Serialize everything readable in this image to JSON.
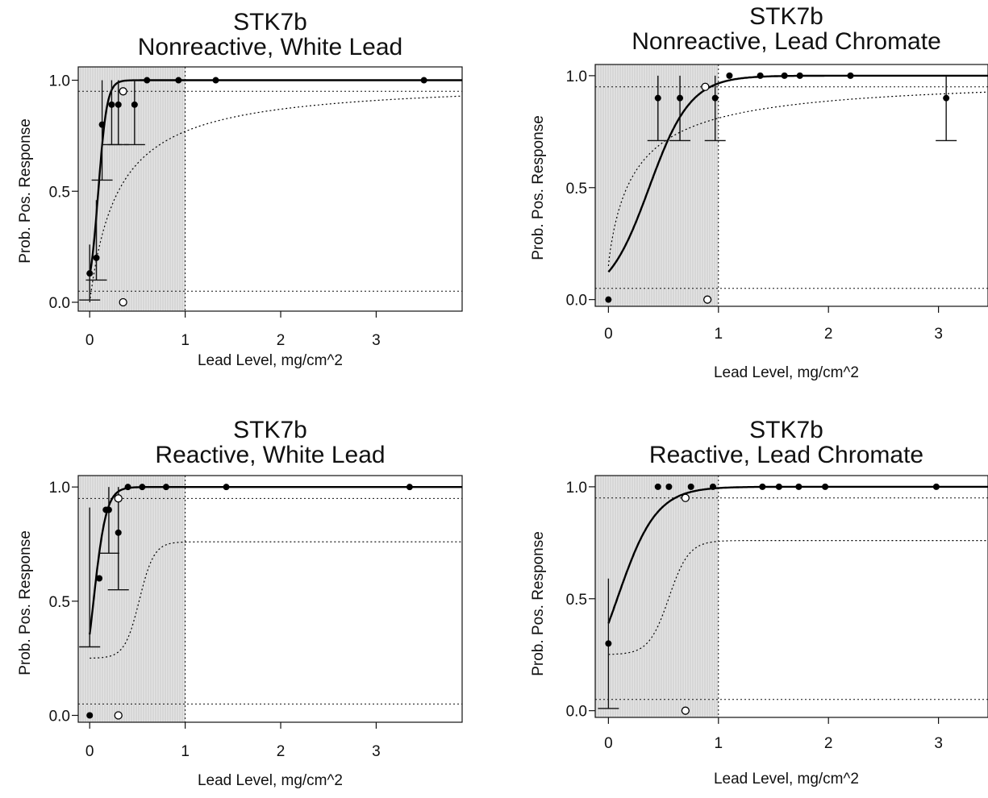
{
  "shading_color": "#c9c9c9",
  "curve_color": "#000000",
  "chart_data": [
    {
      "type": "scatter",
      "title": [
        "STK7b",
        "Nonreactive, White Lead"
      ],
      "xlabel": "Lead Level, mg/cm^2",
      "ylabel": "Prob. Pos. Response",
      "xlim": [
        -0.12,
        3.9
      ],
      "ylim": [
        -0.04,
        1.06
      ],
      "xticks": [
        "0",
        "1",
        "2",
        "3"
      ],
      "yticks": [
        "0.0",
        "0.5",
        "1.0"
      ],
      "threshold_x": 1.0,
      "reference_lines_y": [
        0.05,
        0.95
      ],
      "grid": false,
      "points": [
        {
          "x": 0.0,
          "y": 0.13
        },
        {
          "x": 0.07,
          "y": 0.2
        },
        {
          "x": 0.13,
          "y": 0.8
        },
        {
          "x": 0.23,
          "y": 0.89
        },
        {
          "x": 0.3,
          "y": 0.89
        },
        {
          "x": 0.47,
          "y": 0.89
        },
        {
          "x": 0.6,
          "y": 1.0
        },
        {
          "x": 0.93,
          "y": 1.0
        },
        {
          "x": 1.32,
          "y": 1.0
        },
        {
          "x": 3.5,
          "y": 1.0
        }
      ],
      "open_points": [
        {
          "x": 0.35,
          "y": 0.95
        },
        {
          "x": 0.35,
          "y": 0.0
        }
      ],
      "error_bars": [
        {
          "x": 0.0,
          "lo": 0.01,
          "hi": 0.26
        },
        {
          "x": 0.07,
          "lo": 0.1,
          "hi": 0.46
        },
        {
          "x": 0.13,
          "lo": 0.55,
          "hi": 1.0
        },
        {
          "x": 0.23,
          "lo": 0.71,
          "hi": 1.0
        },
        {
          "x": 0.3,
          "lo": 0.71,
          "hi": 1.0
        },
        {
          "x": 0.47,
          "lo": 0.71,
          "hi": 1.0
        }
      ],
      "fit_solid": {
        "type": "logistic",
        "x0": 0.09,
        "k": 22,
        "lower": 0.0,
        "upper": 1.0
      },
      "fit_dotted": {
        "type": "saturating",
        "lower": 0.0,
        "upper": 1.0,
        "x50": 0.3,
        "power": 1.0
      },
      "shade_to": 1.0
    },
    {
      "type": "scatter",
      "title": [
        "STK7b",
        "Nonreactive, Lead Chromate"
      ],
      "xlabel": "Lead Level, mg/cm^2",
      "ylabel": "Prob. Pos. Response",
      "xlim": [
        -0.12,
        3.45
      ],
      "ylim": [
        -0.03,
        1.05
      ],
      "xticks": [
        "0",
        "1",
        "2",
        "3"
      ],
      "yticks": [
        "0.0",
        "0.5",
        "1.0"
      ],
      "threshold_x": 1.0,
      "reference_lines_y": [
        0.05,
        0.95
      ],
      "grid": false,
      "points": [
        {
          "x": 0.0,
          "y": 0.0
        },
        {
          "x": 0.45,
          "y": 0.9
        },
        {
          "x": 0.65,
          "y": 0.9
        },
        {
          "x": 0.97,
          "y": 0.9
        },
        {
          "x": 1.1,
          "y": 1.0
        },
        {
          "x": 1.38,
          "y": 1.0
        },
        {
          "x": 1.6,
          "y": 1.0
        },
        {
          "x": 1.74,
          "y": 1.0
        },
        {
          "x": 2.2,
          "y": 1.0
        },
        {
          "x": 3.07,
          "y": 0.9
        }
      ],
      "open_points": [
        {
          "x": 0.88,
          "y": 0.95
        },
        {
          "x": 0.9,
          "y": 0.0
        }
      ],
      "error_bars": [
        {
          "x": 0.45,
          "lo": 0.71,
          "hi": 1.0
        },
        {
          "x": 0.65,
          "lo": 0.71,
          "hi": 1.0
        },
        {
          "x": 0.97,
          "lo": 0.71,
          "hi": 1.0
        },
        {
          "x": 3.07,
          "lo": 0.71,
          "hi": 1.0
        }
      ],
      "fit_solid": {
        "type": "logistic",
        "x0": 0.37,
        "k": 5.3,
        "lower": 0.0,
        "upper": 1.0
      },
      "fit_dotted": {
        "type": "saturating",
        "lower": 0.15,
        "upper": 1.0,
        "x50": 0.25,
        "power": 0.9
      },
      "shade_to": 1.0
    },
    {
      "type": "scatter",
      "title": [
        "STK7b",
        "Reactive, White Lead"
      ],
      "xlabel": "Lead Level, mg/cm^2",
      "ylabel": "Prob. Pos. Response",
      "xlim": [
        -0.12,
        3.9
      ],
      "ylim": [
        -0.03,
        1.05
      ],
      "xticks": [
        "0",
        "1",
        "2",
        "3"
      ],
      "yticks": [
        "0.0",
        "0.5",
        "1.0"
      ],
      "threshold_x": 1.0,
      "reference_lines_y": [
        0.05,
        0.95
      ],
      "grid": false,
      "points": [
        {
          "x": 0.0,
          "y": 0.0
        },
        {
          "x": 0.1,
          "y": 0.6
        },
        {
          "x": 0.17,
          "y": 0.9
        },
        {
          "x": 0.2,
          "y": 0.9
        },
        {
          "x": 0.3,
          "y": 0.8
        },
        {
          "x": 0.4,
          "y": 1.0
        },
        {
          "x": 0.55,
          "y": 1.0
        },
        {
          "x": 0.8,
          "y": 1.0
        },
        {
          "x": 1.43,
          "y": 1.0
        },
        {
          "x": 3.35,
          "y": 1.0
        }
      ],
      "open_points": [
        {
          "x": 0.3,
          "y": 0.95
        },
        {
          "x": 0.3,
          "y": 0.0
        }
      ],
      "error_bars": [
        {
          "x": 0.0,
          "lo": 0.3,
          "hi": 0.91
        },
        {
          "x": 0.2,
          "lo": 0.71,
          "hi": 1.0
        },
        {
          "x": 0.3,
          "lo": 0.55,
          "hi": 1.0
        }
      ],
      "fit_solid": {
        "type": "logistic",
        "x0": 0.04,
        "k": 15,
        "lower": 0.0,
        "upper": 1.0
      },
      "fit_dotted": {
        "type": "logistic",
        "x0": 0.52,
        "k": 13,
        "lower": 0.25,
        "upper": 0.76
      },
      "shade_to": 1.0
    },
    {
      "type": "scatter",
      "title": [
        "STK7b",
        "Reactive, Lead Chromate"
      ],
      "xlabel": "Lead Level, mg/cm^2",
      "ylabel": "Prob. Pos. Response",
      "xlim": [
        -0.12,
        3.45
      ],
      "ylim": [
        -0.03,
        1.05
      ],
      "xticks": [
        "0",
        "1",
        "2",
        "3"
      ],
      "yticks": [
        "0.0",
        "0.5",
        "1.0"
      ],
      "threshold_x": 1.0,
      "reference_lines_y": [
        0.05,
        0.95
      ],
      "grid": false,
      "points": [
        {
          "x": 0.0,
          "y": 0.3
        },
        {
          "x": 0.45,
          "y": 1.0
        },
        {
          "x": 0.55,
          "y": 1.0
        },
        {
          "x": 0.75,
          "y": 1.0
        },
        {
          "x": 0.95,
          "y": 1.0
        },
        {
          "x": 1.4,
          "y": 1.0
        },
        {
          "x": 1.55,
          "y": 1.0
        },
        {
          "x": 1.73,
          "y": 1.0
        },
        {
          "x": 1.97,
          "y": 1.0
        },
        {
          "x": 2.98,
          "y": 1.0
        }
      ],
      "open_points": [
        {
          "x": 0.7,
          "y": 0.95
        },
        {
          "x": 0.7,
          "y": 0.0
        }
      ],
      "error_bars": [
        {
          "x": 0.0,
          "lo": 0.01,
          "hi": 0.59
        }
      ],
      "fit_solid": {
        "type": "logistic",
        "x0": 0.08,
        "k": 5.6,
        "lower": 0.0,
        "upper": 1.0
      },
      "fit_dotted": {
        "type": "logistic",
        "x0": 0.55,
        "k": 11,
        "lower": 0.25,
        "upper": 0.76
      },
      "shade_to": 1.0
    }
  ]
}
